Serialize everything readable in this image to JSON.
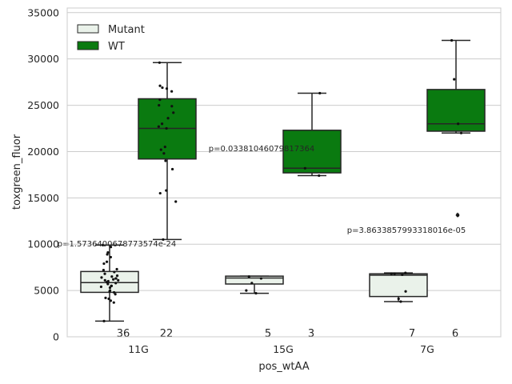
{
  "chart_data": {
    "type": "box",
    "xlabel": "pos_wtAA",
    "ylabel": "toxgreen_fluor",
    "ylim": [
      0,
      35500
    ],
    "yticks": [
      0,
      5000,
      10000,
      15000,
      20000,
      25000,
      30000,
      35000
    ],
    "grid": true,
    "legend_position": "top-left",
    "categories": [
      "11G",
      "15G",
      "7G"
    ],
    "series": [
      {
        "name": "Mutant",
        "color": "#eaf2ea",
        "boxes": [
          {
            "whisker_low": 1700,
            "q1": 4800,
            "median": 5850,
            "q3": 7050,
            "whisker_high": 9900,
            "points": [
              1700,
              3700,
              3900,
              4100,
              4200,
              4600,
              4800,
              4900,
              5000,
              5300,
              5400,
              5500,
              5500,
              5700,
              5800,
              5900,
              6000,
              6100,
              6100,
              6200,
              6300,
              6300,
              6400,
              6500,
              6600,
              6800,
              7000,
              7200,
              7300,
              7900,
              8100,
              8600,
              8900,
              9100,
              9700,
              9900
            ]
          },
          {
            "whisker_low": 4700,
            "q1": 5700,
            "median": 6350,
            "q3": 6550,
            "whisker_high": 6550,
            "points": [
              4700,
              5000,
              5800,
              6300,
              6500
            ]
          },
          {
            "whisker_low": 3800,
            "q1": 4350,
            "median": 6650,
            "q3": 6800,
            "whisker_high": 6900,
            "points": [
              3800,
              4100,
              4900,
              6700,
              6800,
              6800,
              6900
            ]
          }
        ],
        "counts": [
          "36",
          "5",
          "7"
        ]
      },
      {
        "name": "WT",
        "color": "#0a7a10",
        "boxes": [
          {
            "whisker_low": 10500,
            "q1": 19200,
            "median": 22500,
            "q3": 25700,
            "whisker_high": 29600,
            "points": [
              10500,
              14600,
              15500,
              15800,
              18100,
              19000,
              19800,
              20200,
              20500,
              22500,
              22700,
              23000,
              23600,
              24200,
              24900,
              25000,
              25600,
              26500,
              26800,
              26900,
              27100,
              29600
            ]
          },
          {
            "whisker_low": 17400,
            "q1": 17700,
            "median": 18200,
            "q3": 22300,
            "whisker_high": 26300,
            "points": [
              17400,
              18200,
              26300
            ]
          },
          {
            "whisker_low": 22000,
            "q1": 22200,
            "median": 23000,
            "q3": 26700,
            "whisker_high": 32000,
            "points": [
              13100,
              22000,
              23000,
              27800,
              32000
            ],
            "outliers": [
              13100,
              13200
            ]
          }
        ],
        "counts": [
          "22",
          "3",
          "6"
        ]
      }
    ],
    "annotations": [
      {
        "text": "p=1.5736400678773574e-24",
        "category": "11G",
        "y": 10000
      },
      {
        "text": "p=0.03381046079817364",
        "category": "15G",
        "y": 20300
      },
      {
        "text": "p=3.8633857993318016e-05",
        "category": "7G",
        "y": 11500
      }
    ]
  }
}
